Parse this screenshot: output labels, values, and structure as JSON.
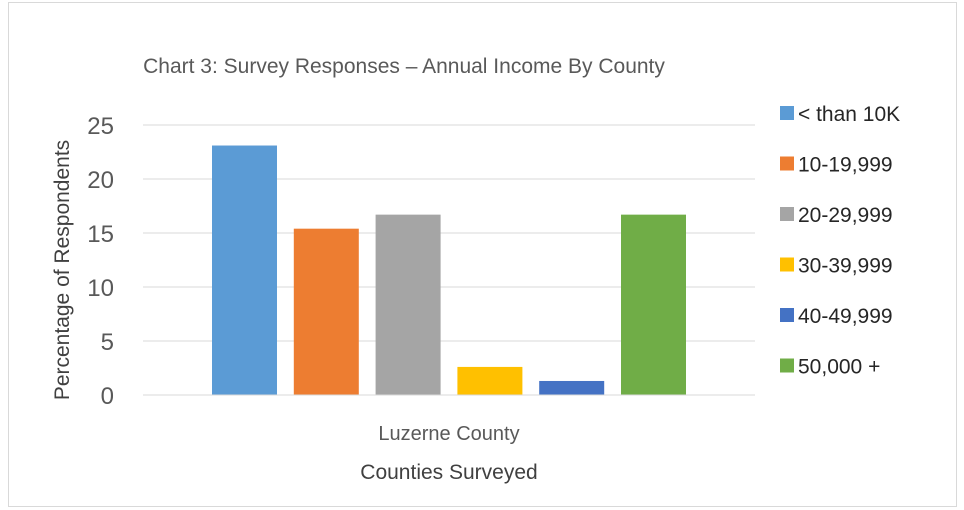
{
  "chart_data": {
    "type": "bar",
    "title": "Chart 3: Survey Responses – Annual Income By County",
    "xlabel": "Counties Surveyed",
    "ylabel": "Percentage of Respondents",
    "categories": [
      "Luzerne County"
    ],
    "ylim": [
      0,
      25
    ],
    "yticks": [
      0,
      5,
      10,
      15,
      20,
      25
    ],
    "grid": true,
    "legend_position": "right",
    "series": [
      {
        "name": "< than 10K",
        "values": [
          23.1
        ],
        "color": "#5B9BD5"
      },
      {
        "name": "10-19,999",
        "values": [
          15.4
        ],
        "color": "#ED7D31"
      },
      {
        "name": "20-29,999",
        "values": [
          16.7
        ],
        "color": "#A5A5A5"
      },
      {
        "name": "30-39,999",
        "values": [
          2.6
        ],
        "color": "#FFC000"
      },
      {
        "name": "40-49,999",
        "values": [
          1.3
        ],
        "color": "#4472C4"
      },
      {
        "name": "50,000 +",
        "values": [
          16.7
        ],
        "color": "#70AD47"
      }
    ]
  }
}
